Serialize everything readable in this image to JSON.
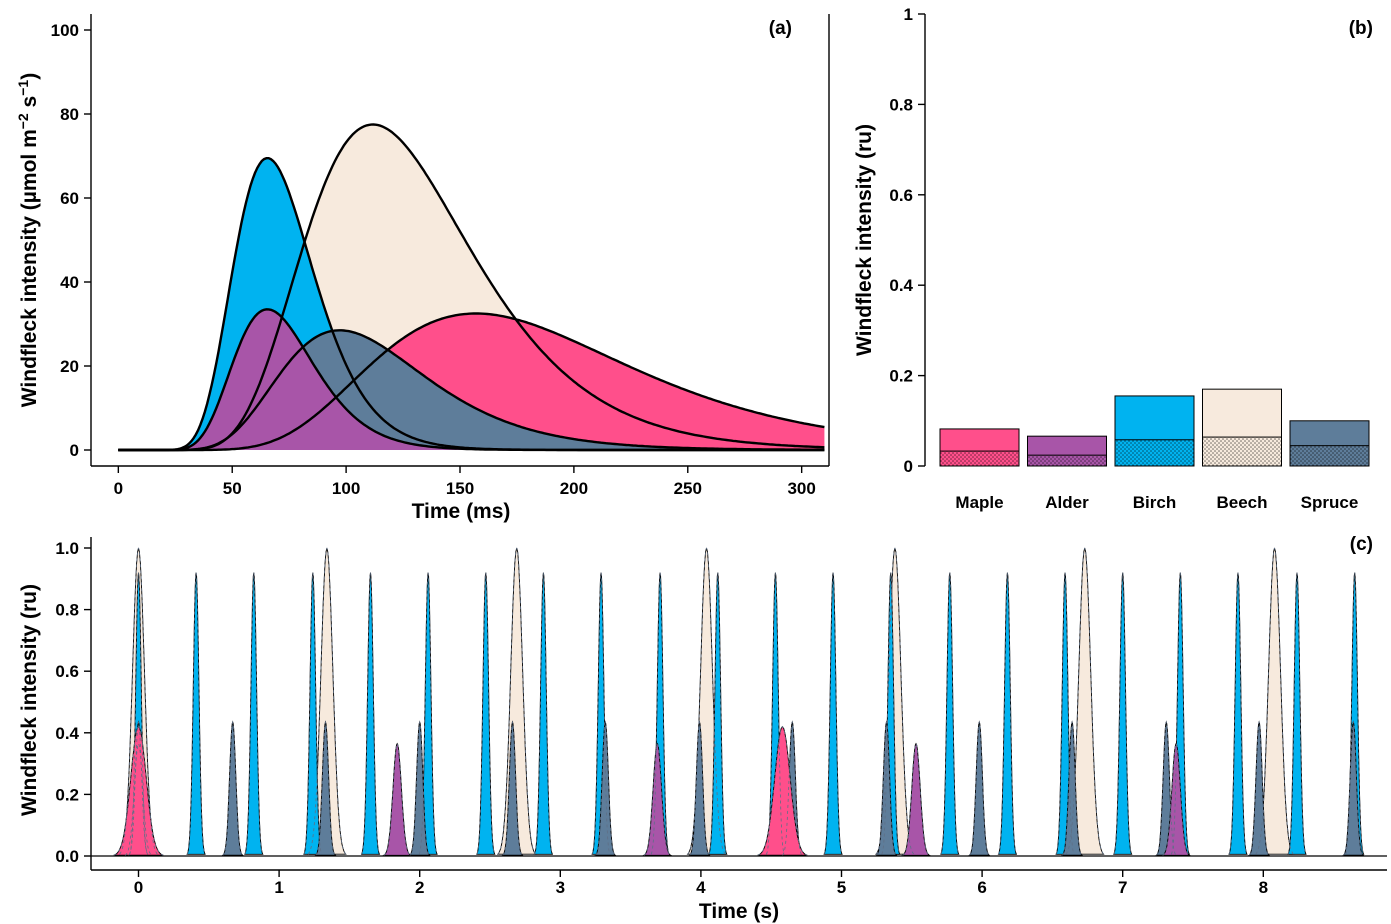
{
  "colors": {
    "Maple": "#ff4f8b",
    "Alder": "#a855a8",
    "Birch": "#00b3f0",
    "Beech": "#f7eadd",
    "Spruce": "#5e7d9a"
  },
  "chart_data": [
    {
      "panel": "(a)",
      "type": "area",
      "xlabel": "Time (ms)",
      "ylabel_text": "Windfleck intensity (µmol m",
      "ylabel_sup1": "−2",
      "ylabel_mid": " s",
      "ylabel_sup2": "−1",
      "ylabel_end": ")",
      "xlim": [
        -12,
        312
      ],
      "ylim": [
        0,
        104
      ],
      "xticks": [
        0,
        50,
        100,
        150,
        200,
        250,
        300
      ],
      "yticks": [
        0,
        20,
        40,
        60,
        80,
        100
      ],
      "series": [
        {
          "name": "Beech",
          "peak_ms": 115,
          "peak": 77.5
        },
        {
          "name": "Birch",
          "peak_ms": 65,
          "peak": 69.5
        },
        {
          "name": "Maple",
          "peak_ms": 165,
          "peak": 32.5
        },
        {
          "name": "Spruce",
          "peak_ms": 100,
          "peak": 28.5
        },
        {
          "name": "Alder",
          "peak_ms": 65,
          "peak": 33.5
        }
      ]
    },
    {
      "panel": "(b)",
      "type": "bar",
      "ylabel": "Windfleck intensity (ru)",
      "ylim": [
        0,
        1
      ],
      "yticks": [
        "0",
        "0.2",
        "0.4",
        "0.6",
        "0.8",
        "1"
      ],
      "categories": [
        "Maple",
        "Alder",
        "Birch",
        "Beech",
        "Spruce"
      ],
      "values": [
        0.082,
        0.066,
        0.155,
        0.17,
        0.1
      ],
      "lower_values": [
        0.033,
        0.024,
        0.058,
        0.064,
        0.045
      ]
    },
    {
      "panel": "(c)",
      "type": "area",
      "xlabel": "Time (s)",
      "ylabel": "Windfleck intensity (ru)",
      "xlim": [
        -0.35,
        8.8
      ],
      "ylim": [
        0,
        1.04
      ],
      "xticks": [
        "0",
        "1",
        "2",
        "3",
        "4",
        "5",
        "6",
        "7",
        "8"
      ],
      "yticks": [
        "0.0",
        "0.2",
        "0.4",
        "0.6",
        "0.8",
        "1.0"
      ],
      "series": [
        {
          "name": "Beech",
          "peak": 1.0,
          "times": [
            0,
            1.34,
            2.69,
            4.04,
            5.38,
            6.73,
            8.08
          ]
        },
        {
          "name": "Birch",
          "peak": 0.92,
          "times": [
            0,
            0.41,
            0.82,
            1.24,
            1.65,
            2.06,
            2.47,
            2.88,
            3.29,
            3.71,
            4.12,
            4.53,
            4.94,
            5.35,
            5.77,
            6.18,
            6.59,
            7.0,
            7.41,
            7.82,
            8.24,
            8.65
          ]
        },
        {
          "name": "Spruce",
          "peak": 0.435,
          "times": [
            0,
            0.67,
            1.33,
            2.0,
            2.66,
            3.32,
            3.99,
            4.65,
            5.32,
            5.98,
            6.64,
            7.31,
            7.97,
            8.64
          ]
        },
        {
          "name": "Alder",
          "peak": 0.365,
          "times": [
            0,
            1.84,
            3.69,
            5.53,
            7.38
          ]
        },
        {
          "name": "Maple",
          "peak": 0.42,
          "times": [
            0,
            4.58
          ]
        }
      ]
    }
  ]
}
